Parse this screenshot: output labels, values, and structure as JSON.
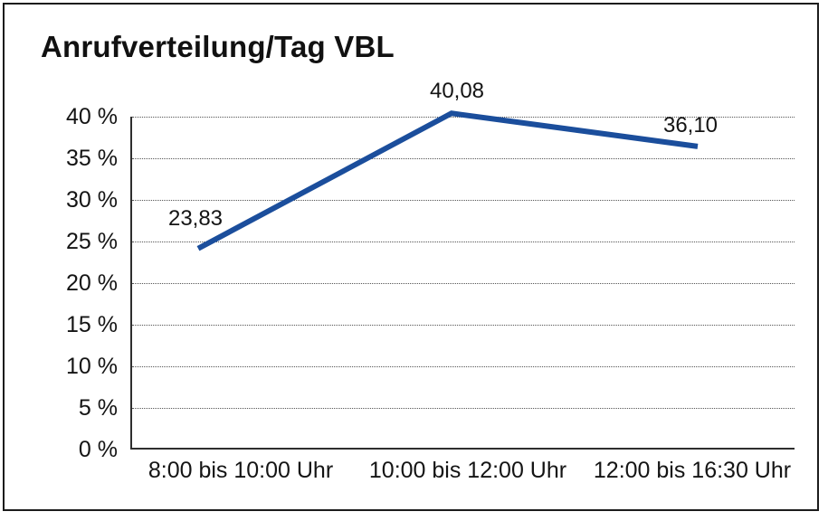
{
  "window": {
    "background": "#ffffff",
    "border_color": "#1c1c1c"
  },
  "chart_data": {
    "type": "line",
    "title": "Anrufverteilung/Tag VBL",
    "categories": [
      "8:00 bis 10:00 Uhr",
      "10:00 bis 12:00 Uhr",
      "12:00 bis 16:30 Uhr"
    ],
    "values": [
      23.83,
      40.08,
      36.1
    ],
    "value_labels": [
      "23,83",
      "40,08",
      "36,10"
    ],
    "ylim": [
      0,
      40
    ],
    "ytick_step": 5,
    "ytick_labels": [
      "0 %",
      "5 %",
      "10 %",
      "15 %",
      "20 %",
      "25 %",
      "30 %",
      "35 %",
      "40 %"
    ],
    "xlabel": "",
    "ylabel": "",
    "grid": "horizontal-dotted",
    "legend_position": "none",
    "line_color": "#1b4e9c",
    "axis_color": "#2e2e2e",
    "gridline_color": "#555555",
    "title_color": "#111111"
  }
}
